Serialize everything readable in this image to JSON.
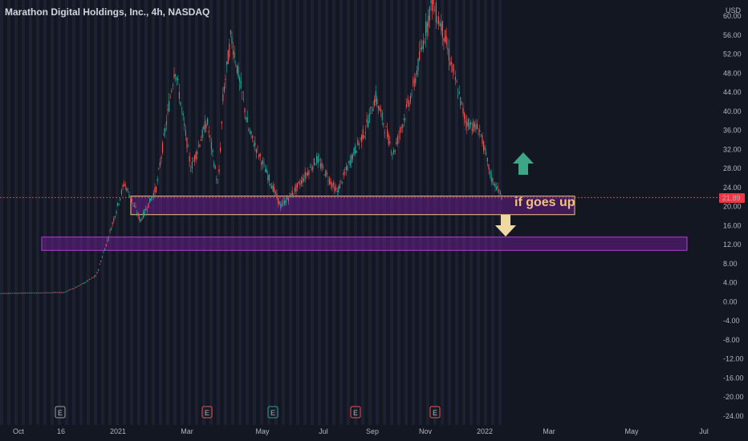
{
  "header": {
    "title": "Marathon Digital Holdings, Inc., 4h, NASDAQ"
  },
  "currency_label": "USD",
  "price_tag": {
    "value": "21.89",
    "color": "#f23645"
  },
  "annotation": {
    "text": "if goes up"
  },
  "colors": {
    "up": "#26a69a",
    "down": "#ef5350",
    "zone": "#7b1fa2",
    "zone_border": "#f0c27a",
    "arrow_up": "#3fa587",
    "arrow_down": "#f0d9a0",
    "background": "#131722"
  },
  "events": [
    "E",
    "E",
    "E",
    "E",
    "E"
  ],
  "chart_data": {
    "type": "candlestick",
    "ylim": [
      -24,
      60
    ],
    "y_ticks": [
      "-24.00",
      "-20.00",
      "-16.00",
      "-12.00",
      "-8.00",
      "-4.00",
      "0.00",
      "4.00",
      "8.00",
      "12.00",
      "16.00",
      "20.00",
      "24.00",
      "28.00",
      "32.00",
      "36.00",
      "40.00",
      "44.00",
      "48.00",
      "52.00",
      "56.00",
      "60.00"
    ],
    "x_ticks": [
      "Oct",
      "16",
      "2021",
      "Mar",
      "May",
      "Jul",
      "Sep",
      "Nov",
      "2022",
      "Mar",
      "May",
      "Jul"
    ],
    "last_price": 21.89,
    "zones": [
      {
        "name": "upper",
        "y_low": 18.3,
        "y_high": 22.2
      },
      {
        "name": "lower",
        "y_low": 10.8,
        "y_high": 13.6
      }
    ],
    "price_path": [
      [
        "Oct",
        1.8
      ],
      [
        "16",
        2.0
      ],
      [
        "",
        3.5
      ],
      [
        "",
        5.5
      ],
      [
        "",
        13.5
      ],
      [
        "2021",
        25.0
      ],
      [
        "",
        17.0
      ],
      [
        "",
        24.0
      ],
      [
        "",
        49.5
      ],
      [
        "",
        28.0
      ],
      [
        "Mar",
        38.0
      ],
      [
        "",
        24.0
      ],
      [
        "",
        43.0
      ],
      [
        "",
        56.0
      ],
      [
        "",
        36.0
      ],
      [
        "May",
        24.0
      ],
      [
        "",
        20.0
      ],
      [
        "",
        24.0
      ],
      [
        "",
        30.0
      ],
      [
        "Jul",
        23.0
      ],
      [
        "",
        31.0
      ],
      [
        "",
        36.0
      ],
      [
        "Sep",
        43.0
      ],
      [
        "",
        31.0
      ],
      [
        "",
        45.0
      ],
      [
        "Nov",
        63.0
      ],
      [
        "",
        57.0
      ],
      [
        "",
        48.0
      ],
      [
        "",
        38.0
      ],
      [
        "",
        36.0
      ],
      [
        "2022",
        26.0
      ],
      [
        "",
        21.9
      ]
    ]
  }
}
